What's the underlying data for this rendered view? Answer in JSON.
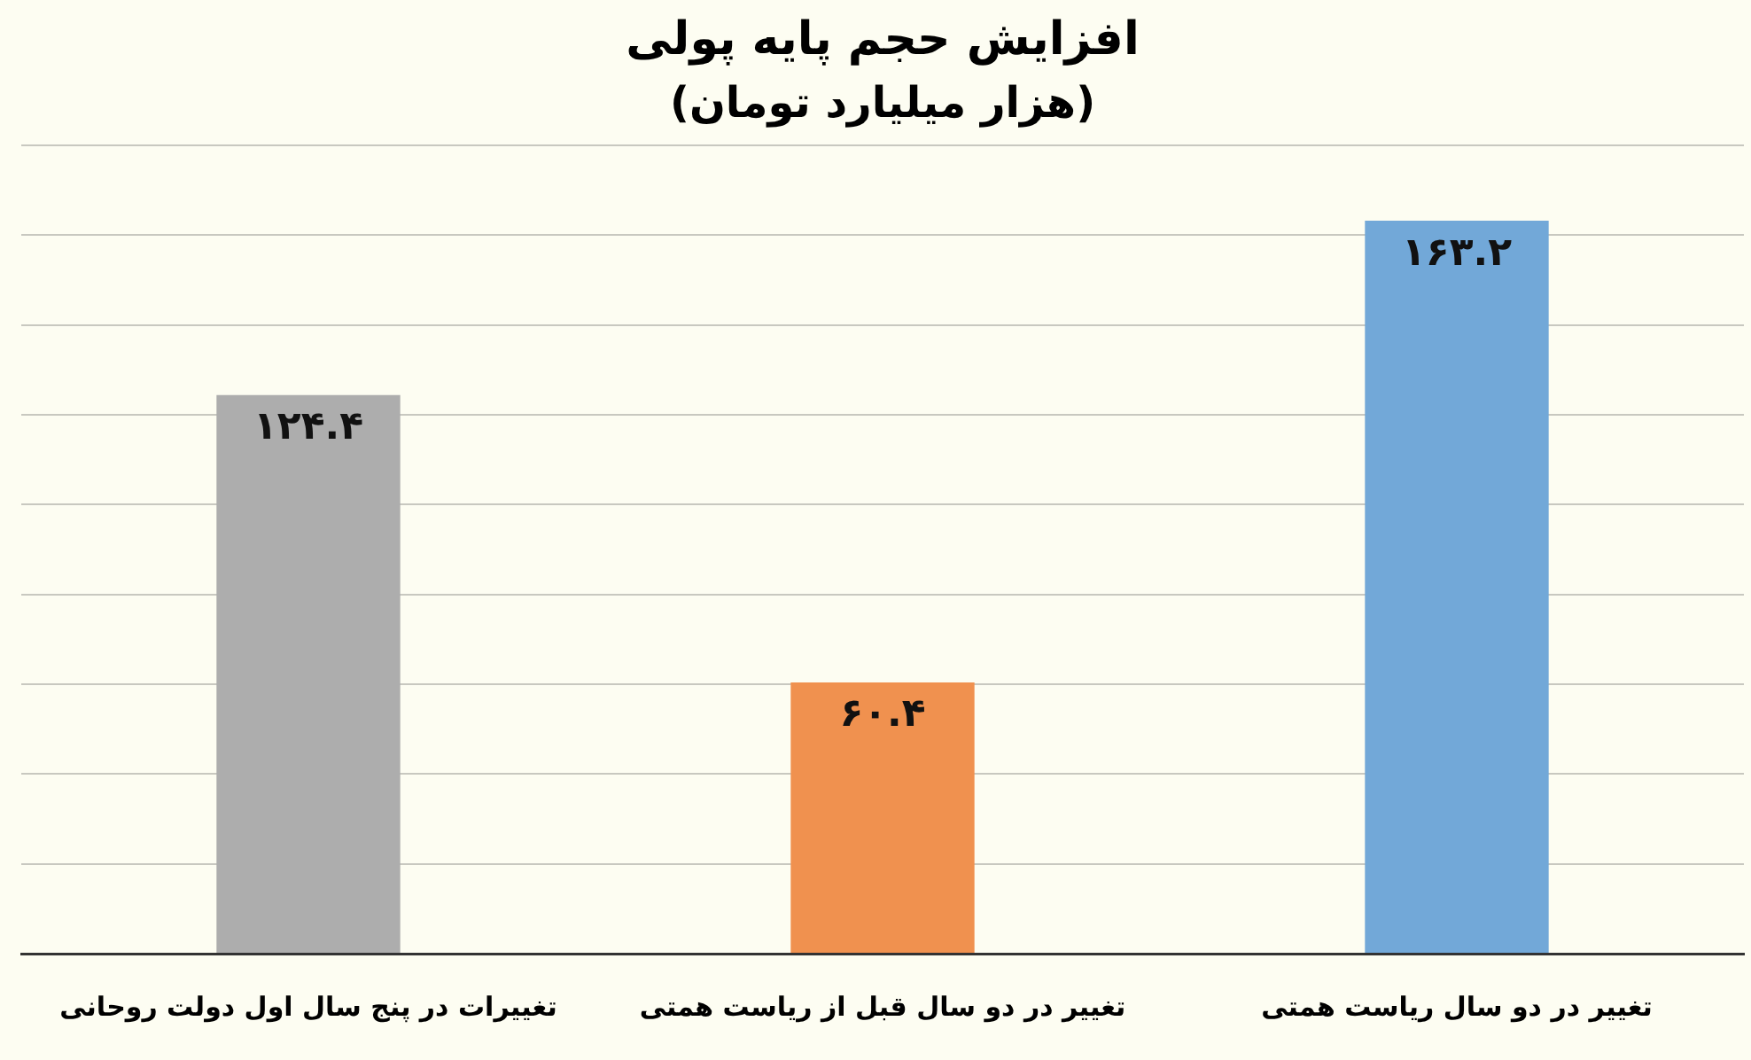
{
  "chart_data": {
    "type": "bar",
    "title": "افزایش حجم پایه پولی",
    "subtitle": "(هزار میلیارد تومان)",
    "categories": [
      "تغییرات در پنج سال اول دولت روحانی",
      "تغییر در دو سال قبل از ریاست همتی",
      "تغییر در دو سال ریاست همتی"
    ],
    "values": [
      124.4,
      60.4,
      163.2
    ],
    "colors": [
      "#adadad",
      "#f0914f",
      "#72a8d8"
    ],
    "value_labels": [
      "۱۲۴.۴",
      "۶۰.۴",
      "۱۶۳.۲"
    ],
    "ylim": [
      0,
      180
    ],
    "yticks": [
      {
        "value": 0,
        "label": null
      },
      {
        "value": 20,
        "label": null
      },
      {
        "value": 40,
        "label": null
      },
      {
        "value": 60,
        "label": null
      },
      {
        "value": 80,
        "label": null
      },
      {
        "value": 100,
        "label": null
      },
      {
        "value": 120,
        "label": null
      },
      {
        "value": 140,
        "label": null
      },
      {
        "value": 160,
        "label": null
      },
      {
        "value": 180,
        "label": null
      }
    ],
    "grid": "y",
    "tick_labels": "x",
    "legend": false
  }
}
